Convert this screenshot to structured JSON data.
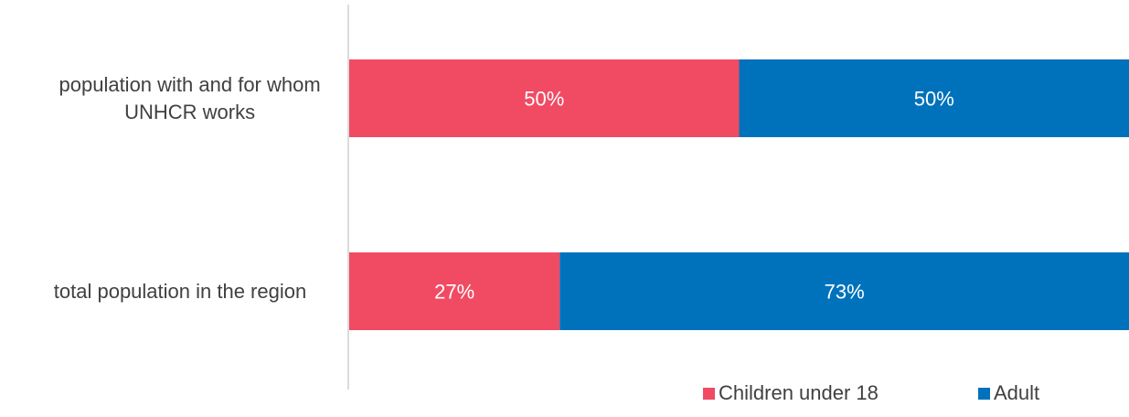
{
  "chart_data": {
    "type": "bar",
    "orientation": "horizontal",
    "stacked": "percent",
    "categories": [
      [
        "population with and for whom",
        "UNHCR works"
      ],
      [
        "total population in the region"
      ]
    ],
    "series": [
      {
        "name": "Children under 18",
        "color": "#f04b63",
        "values": [
          50,
          27
        ],
        "labels": [
          "50%",
          "27%"
        ]
      },
      {
        "name": "Adult",
        "color": "#0072bc",
        "values": [
          50,
          73
        ],
        "labels": [
          "50%",
          "73%"
        ]
      }
    ],
    "xlim": [
      0,
      100
    ],
    "grid": false,
    "legend": "bottom-right",
    "title": "",
    "xlabel": "",
    "ylabel": ""
  }
}
